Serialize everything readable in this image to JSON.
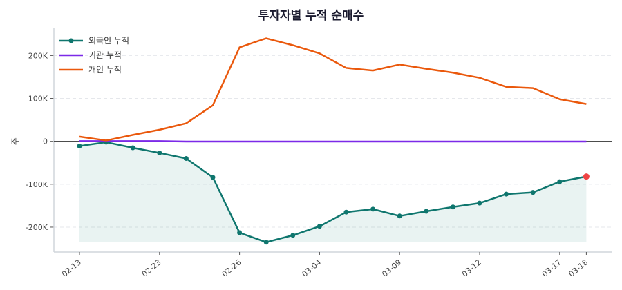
{
  "chart_data": {
    "type": "line",
    "title": "투자자별 누적 순매수",
    "ylabel": "주",
    "xlabel": "",
    "x_tick_labels": [
      {
        "index": 0,
        "label": "02-13"
      },
      {
        "index": 3,
        "label": "02-23"
      },
      {
        "index": 6,
        "label": "02-26"
      },
      {
        "index": 9,
        "label": "03-04"
      },
      {
        "index": 12,
        "label": "03-09"
      },
      {
        "index": 15,
        "label": "03-12"
      },
      {
        "index": 18,
        "label": "03-17"
      },
      {
        "index": 19,
        "label": "03-18"
      }
    ],
    "y_ticks": [
      {
        "value": -200000,
        "label": "-200K"
      },
      {
        "value": -100000,
        "label": "-100K"
      },
      {
        "value": 0,
        "label": "0"
      },
      {
        "value": 100000,
        "label": "100K"
      },
      {
        "value": 200000,
        "label": "200K"
      }
    ],
    "ylim": [
      -258000,
      265000
    ],
    "grid": "horizontal dashed",
    "legend_position": "top-left",
    "series": [
      {
        "name": "외국인 누적",
        "color": "#0f766e",
        "markers": true,
        "fill": true,
        "values": [
          -11000,
          -2000,
          -15000,
          -27000,
          -40000,
          -84000,
          -213000,
          -235000,
          -219000,
          -198000,
          -165000,
          -158000,
          -174000,
          -163000,
          -153000,
          -144000,
          -123000,
          -119000,
          -94000,
          -82000
        ]
      },
      {
        "name": "기관 누적",
        "color": "#7c2ae8",
        "markers": false,
        "fill": false,
        "values": [
          500,
          500,
          500,
          500,
          -500,
          -500,
          -500,
          -500,
          -500,
          -500,
          -500,
          -500,
          -500,
          -500,
          -500,
          -500,
          -500,
          -500,
          -500,
          -500
        ]
      },
      {
        "name": "개인 누적",
        "color": "#ea580c",
        "markers": false,
        "fill": false,
        "values": [
          11000,
          2000,
          15000,
          27000,
          42000,
          84000,
          219000,
          240000,
          224000,
          205000,
          171000,
          165000,
          179000,
          169000,
          160000,
          148000,
          127000,
          124000,
          98000,
          87000
        ]
      }
    ],
    "last_point_highlight_color": "#ef4444"
  }
}
